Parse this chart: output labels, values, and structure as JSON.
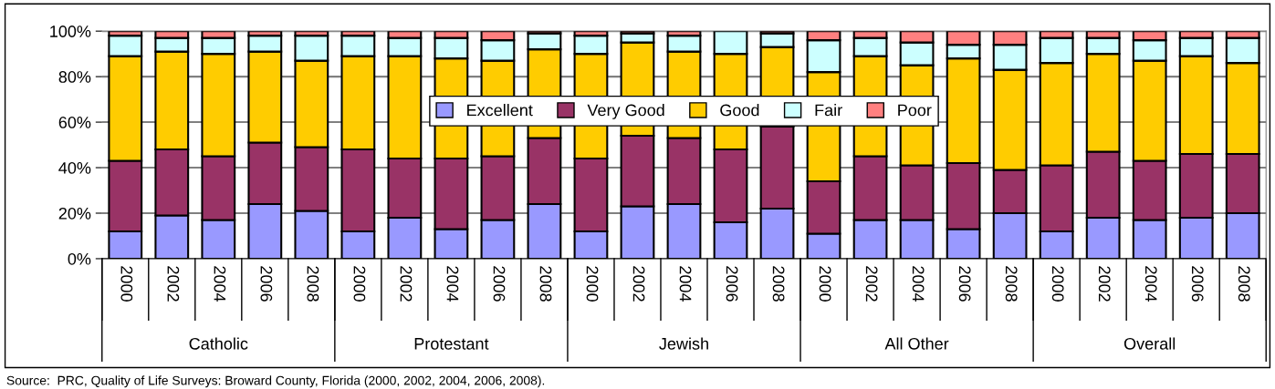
{
  "chart_data": {
    "type": "bar",
    "stacked": true,
    "categories": [
      "2000",
      "2002",
      "2004",
      "2006",
      "2008",
      "2000",
      "2002",
      "2004",
      "2006",
      "2008",
      "2000",
      "2002",
      "2004",
      "2006",
      "2008",
      "2000",
      "2002",
      "2004",
      "2006",
      "2008",
      "2000",
      "2002",
      "2004",
      "2006",
      "2008"
    ],
    "series": [
      {
        "name": "Excellent",
        "color": "#9999ff",
        "values": [
          12,
          19,
          17,
          24,
          21,
          12,
          18,
          13,
          17,
          24,
          12,
          23,
          24,
          16,
          22,
          11,
          17,
          17,
          13,
          20,
          12,
          18,
          17,
          18,
          20
        ]
      },
      {
        "name": "Very Good",
        "color": "#993366",
        "values": [
          31,
          29,
          28,
          27,
          28,
          36,
          26,
          31,
          28,
          29,
          32,
          31,
          29,
          32,
          36,
          23,
          28,
          24,
          29,
          19,
          29,
          29,
          26,
          28,
          26
        ]
      },
      {
        "name": "Good",
        "color": "#ffcc00",
        "values": [
          46,
          43,
          45,
          40,
          38,
          41,
          45,
          44,
          42,
          39,
          46,
          41,
          38,
          42,
          35,
          48,
          44,
          44,
          46,
          44,
          45,
          43,
          44,
          43,
          40
        ]
      },
      {
        "name": "Fair",
        "color": "#ccffff",
        "values": [
          9,
          6,
          7,
          7,
          11,
          9,
          8,
          9,
          9,
          7,
          8,
          4,
          7,
          10,
          6,
          14,
          8,
          10,
          6,
          11,
          11,
          7,
          9,
          8,
          11
        ]
      },
      {
        "name": "Poor",
        "color": "#ff8080",
        "values": [
          2,
          3,
          3,
          2,
          2,
          2,
          3,
          3,
          4,
          1,
          2,
          1,
          2,
          null,
          1,
          4,
          3,
          5,
          6,
          6,
          3,
          3,
          4,
          3,
          3
        ]
      }
    ],
    "ylim": [
      0,
      100
    ],
    "yticks": [
      {
        "value": 0,
        "label": "0%"
      },
      {
        "value": 20,
        "label": "20%"
      },
      {
        "value": 40,
        "label": "40%"
      },
      {
        "value": 60,
        "label": "60%"
      },
      {
        "value": 80,
        "label": "80%"
      },
      {
        "value": 100,
        "label": "100%"
      }
    ],
    "grid": "y",
    "legend": "top",
    "annotations": [
      "Catholic",
      "Protestant",
      "Jewish",
      "All Other",
      "Overall",
      "Source:  PRC, Quality of Life Surveys: Broward County, Florida (2000, 2002, 2004, 2006, 2008)."
    ]
  }
}
